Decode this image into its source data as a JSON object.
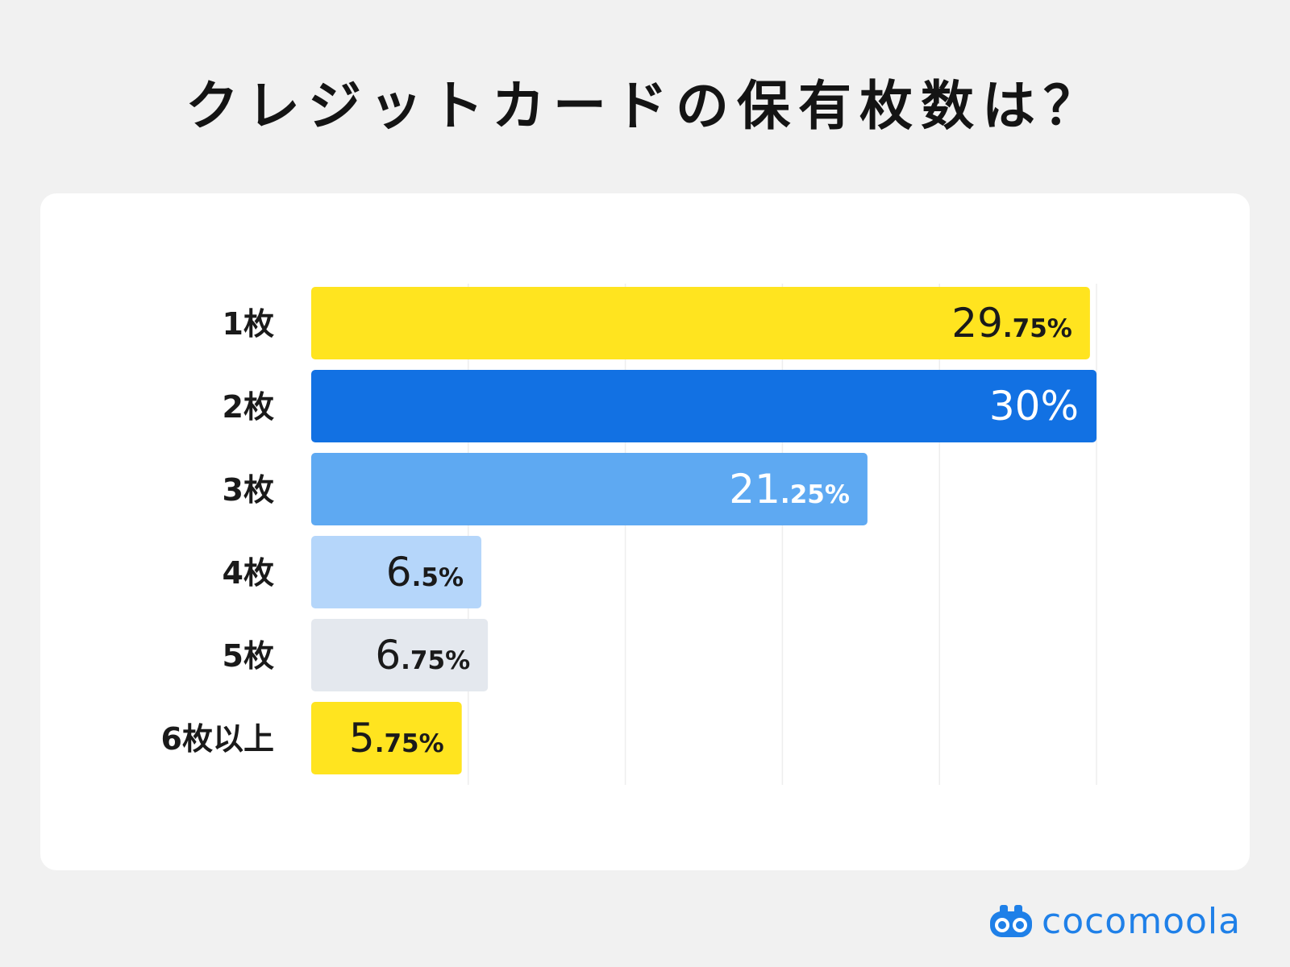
{
  "title": "クレジットカードの保有枚数は？",
  "brand": {
    "name": "cocomoola",
    "icon": "binoculars-icon",
    "color": "#1f80e8"
  },
  "chart_data": {
    "type": "bar",
    "orientation": "horizontal",
    "categories": [
      "1枚",
      "2枚",
      "3枚",
      "4枚",
      "5枚",
      "6枚以上"
    ],
    "values": [
      29.75,
      30,
      21.25,
      6.5,
      6.75,
      5.75
    ],
    "value_labels": [
      {
        "main": "29",
        "small": ".75%"
      },
      {
        "main": "30%",
        "small": ""
      },
      {
        "main": "21",
        "small": ".25%"
      },
      {
        "main": "6",
        "small": ".5%"
      },
      {
        "main": "6",
        "small": ".75%"
      },
      {
        "main": "5",
        "small": ".75%"
      }
    ],
    "bar_colors": [
      "#ffe41f",
      "#1271e3",
      "#5ea9f2",
      "#b5d6fa",
      "#e4e8ee",
      "#ffe41f"
    ],
    "label_colors": [
      "#1a1a1a",
      "#ffffff",
      "#ffffff",
      "#1a1a1a",
      "#1a1a1a",
      "#1a1a1a"
    ],
    "xlim": [
      0,
      30
    ],
    "grid": true,
    "unit": "%",
    "xlabel": "",
    "ylabel": ""
  }
}
